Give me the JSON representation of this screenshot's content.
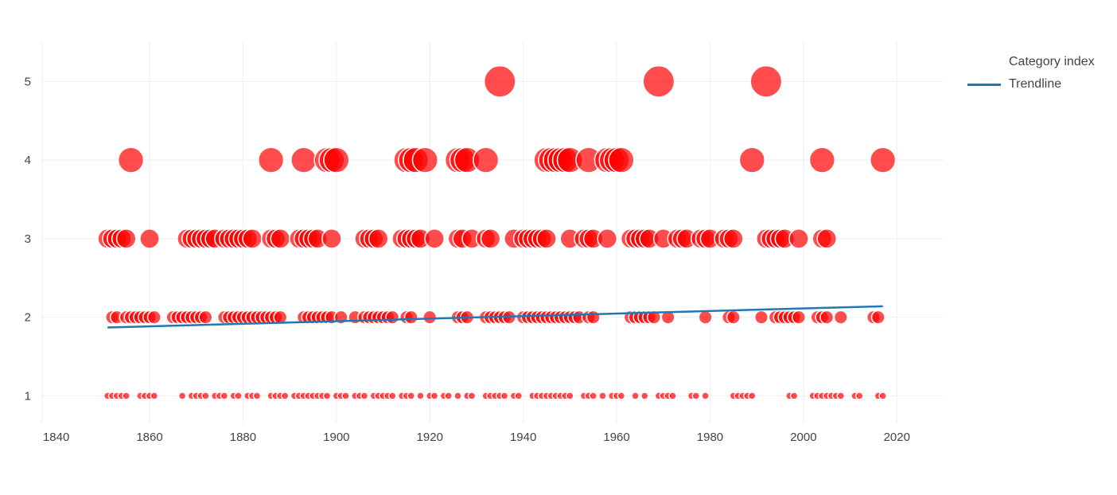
{
  "chart_data": {
    "type": "scatter",
    "xlim": [
      1837,
      2030
    ],
    "ylim": [
      0.65,
      5.5
    ],
    "x_ticks": [
      1840,
      1860,
      1880,
      1900,
      1920,
      1940,
      1960,
      1980,
      2000,
      2020
    ],
    "y_ticks": [
      1,
      2,
      3,
      4,
      5
    ],
    "grid": true,
    "legend_position": "top-right",
    "marker_color": "#ff0000",
    "trend_color": "#1f77b4",
    "series": [
      {
        "name": "Category index",
        "type": "scatter",
        "points": [
          {
            "y": 1,
            "x": [
              1851,
              1852,
              1853,
              1854,
              1855,
              1858,
              1859,
              1860,
              1861,
              1867,
              1869,
              1870,
              1871,
              1872,
              1874,
              1875,
              1876,
              1878,
              1879,
              1881,
              1882,
              1883,
              1886,
              1887,
              1888,
              1889,
              1891,
              1892,
              1893,
              1894,
              1895,
              1896,
              1897,
              1898,
              1900,
              1901,
              1902,
              1904,
              1905,
              1906,
              1908,
              1909,
              1910,
              1911,
              1912,
              1914,
              1915,
              1916,
              1918,
              1920,
              1921,
              1923,
              1924,
              1926,
              1928,
              1929,
              1932,
              1933,
              1934,
              1935,
              1936,
              1938,
              1939,
              1942,
              1943,
              1944,
              1945,
              1946,
              1947,
              1948,
              1949,
              1950,
              1953,
              1954,
              1955,
              1957,
              1959,
              1960,
              1961,
              1964,
              1966,
              1969,
              1970,
              1971,
              1972,
              1976,
              1977,
              1979,
              1985,
              1986,
              1987,
              1988,
              1989,
              1997,
              1998,
              2002,
              2003,
              2004,
              2005,
              2006,
              2007,
              2008,
              2011,
              2012,
              2016,
              2017
            ]
          },
          {
            "y": 2,
            "x": [
              1852,
              1853,
              1855,
              1856,
              1857,
              1858,
              1859,
              1860,
              1861,
              1865,
              1866,
              1867,
              1868,
              1869,
              1870,
              1871,
              1872,
              1876,
              1877,
              1878,
              1879,
              1880,
              1881,
              1882,
              1883,
              1884,
              1885,
              1886,
              1887,
              1888,
              1893,
              1894,
              1895,
              1896,
              1897,
              1898,
              1899,
              1901,
              1904,
              1906,
              1907,
              1908,
              1909,
              1910,
              1911,
              1912,
              1915,
              1916,
              1920,
              1926,
              1927,
              1928,
              1932,
              1933,
              1934,
              1935,
              1936,
              1937,
              1940,
              1941,
              1942,
              1943,
              1944,
              1945,
              1946,
              1947,
              1948,
              1949,
              1950,
              1951,
              1952,
              1954,
              1955,
              1963,
              1964,
              1965,
              1966,
              1967,
              1968,
              1971,
              1979,
              1984,
              1985,
              1991,
              1994,
              1995,
              1996,
              1997,
              1998,
              1999,
              2003,
              2004,
              2005,
              2008,
              2015,
              2016
            ]
          },
          {
            "y": 3,
            "x": [
              1851,
              1852,
              1853,
              1854,
              1855,
              1860,
              1868,
              1869,
              1870,
              1871,
              1872,
              1873,
              1874,
              1876,
              1877,
              1878,
              1879,
              1880,
              1881,
              1882,
              1886,
              1887,
              1888,
              1892,
              1893,
              1894,
              1895,
              1896,
              1899,
              1906,
              1907,
              1908,
              1909,
              1914,
              1915,
              1916,
              1917,
              1918,
              1921,
              1926,
              1927,
              1929,
              1932,
              1933,
              1938,
              1940,
              1941,
              1942,
              1943,
              1944,
              1945,
              1950,
              1953,
              1954,
              1955,
              1958,
              1963,
              1964,
              1965,
              1966,
              1967,
              1970,
              1973,
              1974,
              1975,
              1978,
              1979,
              1980,
              1983,
              1984,
              1985,
              1992,
              1993,
              1994,
              1995,
              1996,
              1999,
              2004,
              2005
            ]
          },
          {
            "y": 4,
            "x": [
              1856,
              1886,
              1893,
              1898,
              1899,
              1900,
              1915,
              1916,
              1917,
              1919,
              1926,
              1927,
              1928,
              1932,
              1945,
              1946,
              1947,
              1948,
              1949,
              1950,
              1954,
              1958,
              1959,
              1960,
              1961,
              1989,
              2004,
              2017
            ]
          },
          {
            "y": 5,
            "x": [
              1935,
              1969,
              1992
            ]
          }
        ]
      },
      {
        "name": "Trendline",
        "type": "line",
        "x": [
          1851,
          2017
        ],
        "y": [
          1.87,
          2.14
        ]
      }
    ]
  },
  "legend": {
    "category_label": "Category index",
    "trend_label": "Trendline"
  }
}
